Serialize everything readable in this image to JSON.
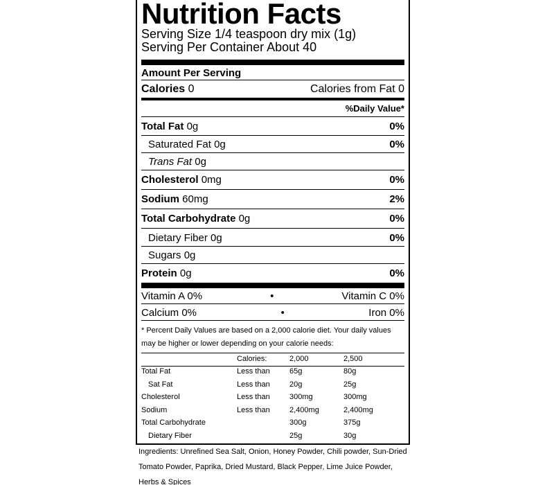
{
  "title": "Nutrition Facts",
  "serving_size": "Serving Size 1/4 teaspoon dry mix (1g)",
  "servings_per_container": "Serving Per Container About 40",
  "amount_per_serving": "Amount Per Serving",
  "calories": {
    "label": "Calories",
    "value": "0",
    "from_fat": "Calories from Fat 0"
  },
  "daily_value_header": "%Daily Value*",
  "nutrients": [
    {
      "name": "Total Fat",
      "amount": "0g",
      "dv": "0%"
    },
    {
      "name": "Saturated Fat",
      "amount": "0g",
      "dv": "0%"
    },
    {
      "name": "Trans Fat",
      "amount": "0g"
    },
    {
      "name": "Cholesterol",
      "amount": "0mg",
      "dv": "0%"
    },
    {
      "name": "Sodium",
      "amount": "60mg",
      "dv": "2%"
    },
    {
      "name": "Total Carbohydrate",
      "amount": "0g",
      "dv": "0%"
    },
    {
      "name": "Dietary Fiber",
      "amount": "0g",
      "dv": "0%"
    },
    {
      "name": "Sugars",
      "amount": "0g"
    },
    {
      "name": "Protein",
      "amount": "0g",
      "dv": "0%"
    }
  ],
  "vitamins": [
    [
      "Vitamin A 0%",
      "Vitamin C 0%"
    ],
    [
      "Calcium 0%",
      "Iron 0%"
    ]
  ],
  "footnote": "* Percent Daily Values are based on a 2,000 calorie diet. Your daily values may be higher or lower depending on your calorie needs:",
  "footnote_table": {
    "header": {
      "label": "Calories:",
      "values": [
        "2,000",
        "2,500"
      ]
    },
    "rows": [
      {
        "name": "Total Fat",
        "qualifier": "Less than",
        "values": [
          "65g",
          "80g"
        ]
      },
      {
        "name": "Sat Fat",
        "qualifier": "Less than",
        "values": [
          "20g",
          "25g"
        ]
      },
      {
        "name": "Cholesterol",
        "qualifier": "Less than",
        "values": [
          "300mg",
          "300mg"
        ]
      },
      {
        "name": "Sodium",
        "qualifier": "Less than",
        "values": [
          "2,400mg",
          "2,400mg"
        ]
      },
      {
        "name": "Total Carbohydrate",
        "values": [
          "300g",
          "375g"
        ]
      },
      {
        "name": "Dietary Fiber",
        "values": [
          "25g",
          "30g"
        ]
      }
    ]
  },
  "ingredients": "Ingredients: Unrefined Sea Salt, Onion, Honey Powder, Chili powder, Sun-Dried Tomato Powder, Paprika, Dried Mustard, Black Pepper, Lime Juice Powder, Herbs & Spices"
}
